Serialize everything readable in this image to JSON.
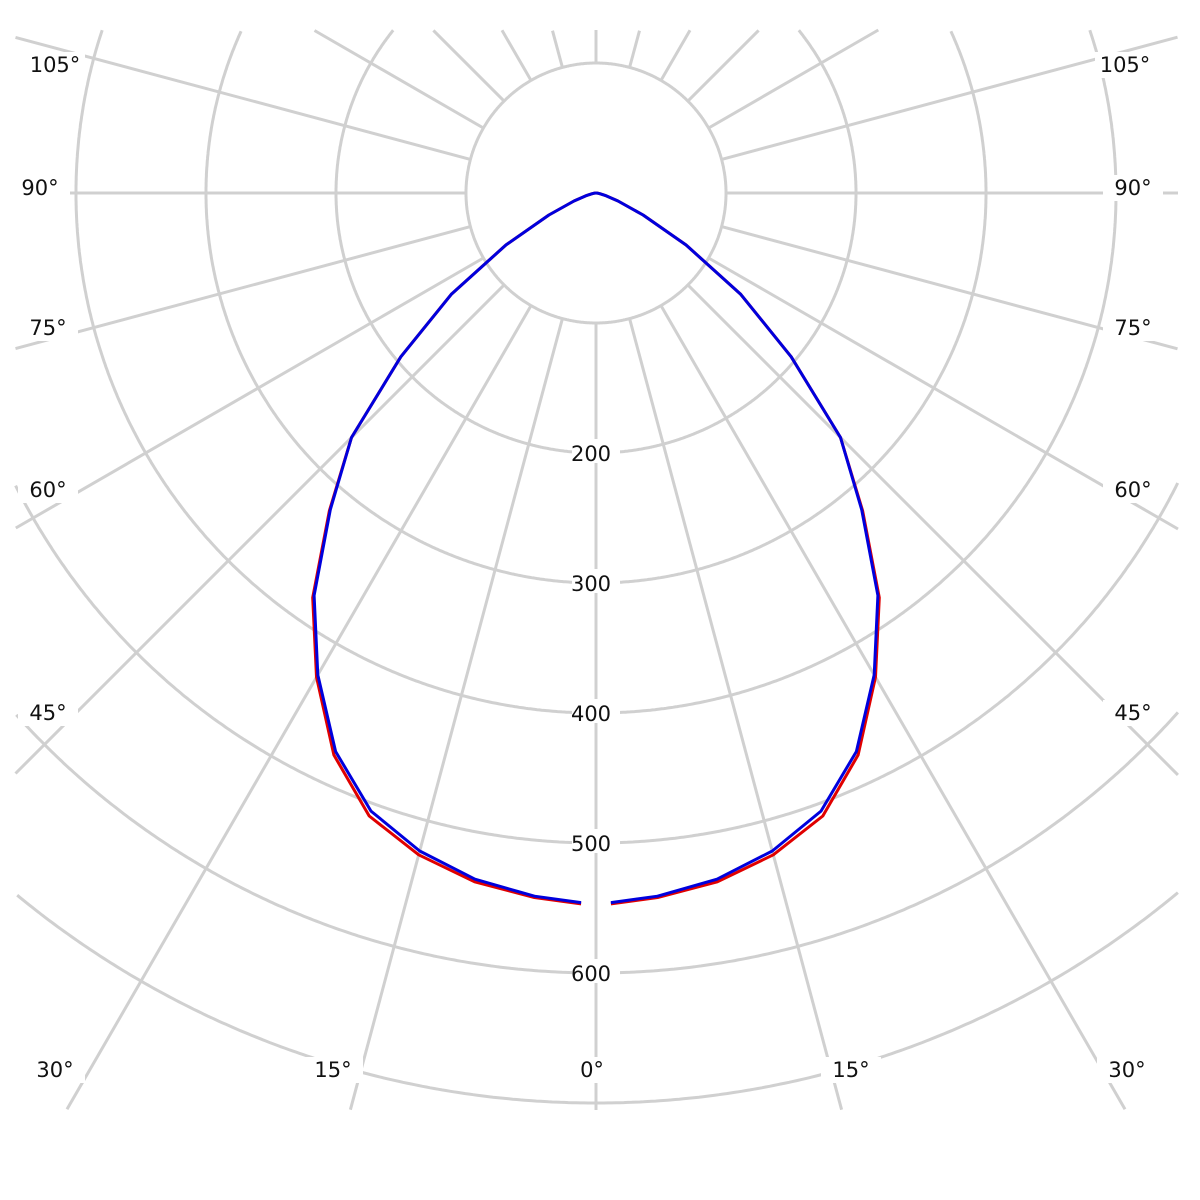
{
  "chart_data": {
    "type": "polar-line",
    "angle_unit": "degrees",
    "zero_direction": "down",
    "symmetric": true,
    "radial_ticks": [
      200,
      300,
      400,
      500,
      600
    ],
    "radial_circles": [
      100,
      200,
      300,
      400,
      500,
      600,
      700
    ],
    "radial_range": [
      0,
      700
    ],
    "angle_tick_labels": [
      "0°",
      "15°",
      "30°",
      "45°",
      "60°",
      "75°",
      "90°",
      "105°"
    ],
    "angle_grid_step": 15,
    "grid": true,
    "colors": {
      "grid": "#d0d0d0",
      "series1": "#e00000",
      "series2": "#0000dd"
    },
    "angles": [
      0,
      5,
      10,
      15,
      20,
      25,
      30,
      35,
      40,
      45,
      50,
      55,
      60,
      65,
      70,
      75,
      80,
      85,
      90
    ],
    "series": [
      {
        "color": "#e00000",
        "values": [
          547,
          544,
          538,
          527,
          510,
          477,
          430,
          380,
          319,
          266,
          196,
          136,
          80,
          40,
          18,
          8,
          3,
          1,
          0
        ]
      },
      {
        "color": "#0000dd",
        "values": [
          546,
          543,
          536,
          524,
          506,
          474,
          428,
          378,
          318,
          266,
          196,
          136,
          80,
          40,
          18,
          8,
          3,
          1,
          0
        ]
      }
    ]
  }
}
